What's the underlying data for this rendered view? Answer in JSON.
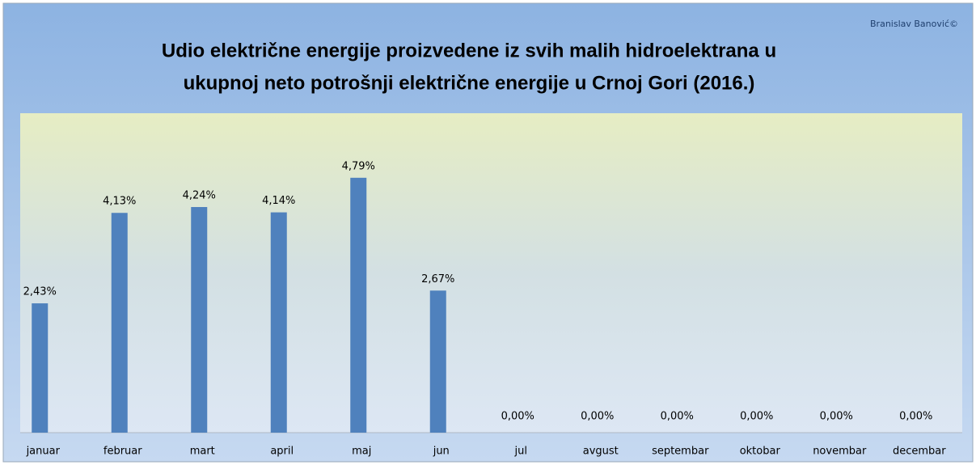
{
  "chart_data": {
    "type": "bar",
    "title": [
      "Udio električne energije proizvedene iz svih malih hidroelektrana   u",
      "ukupnoj neto potrošnji električne energije u Crnoj Gori (2016.)"
    ],
    "credit": "Branislav Banović©",
    "categories": [
      "januar",
      "februar",
      "mart",
      "april",
      "maj",
      "jun",
      "jul",
      "avgust",
      "septembar",
      "oktobar",
      "novembar",
      "decembar"
    ],
    "values": [
      2.43,
      4.13,
      4.24,
      4.14,
      4.79,
      2.67,
      0,
      0,
      0,
      0,
      0,
      0
    ],
    "value_labels": [
      "2,43%",
      "4,13%",
      "4,24%",
      "4,14%",
      "4,79%",
      "2,67%",
      "0,00%",
      "0,00%",
      "0,00%",
      "0,00%",
      "0,00%",
      "0,00%"
    ],
    "color": "#4f81bd"
  }
}
